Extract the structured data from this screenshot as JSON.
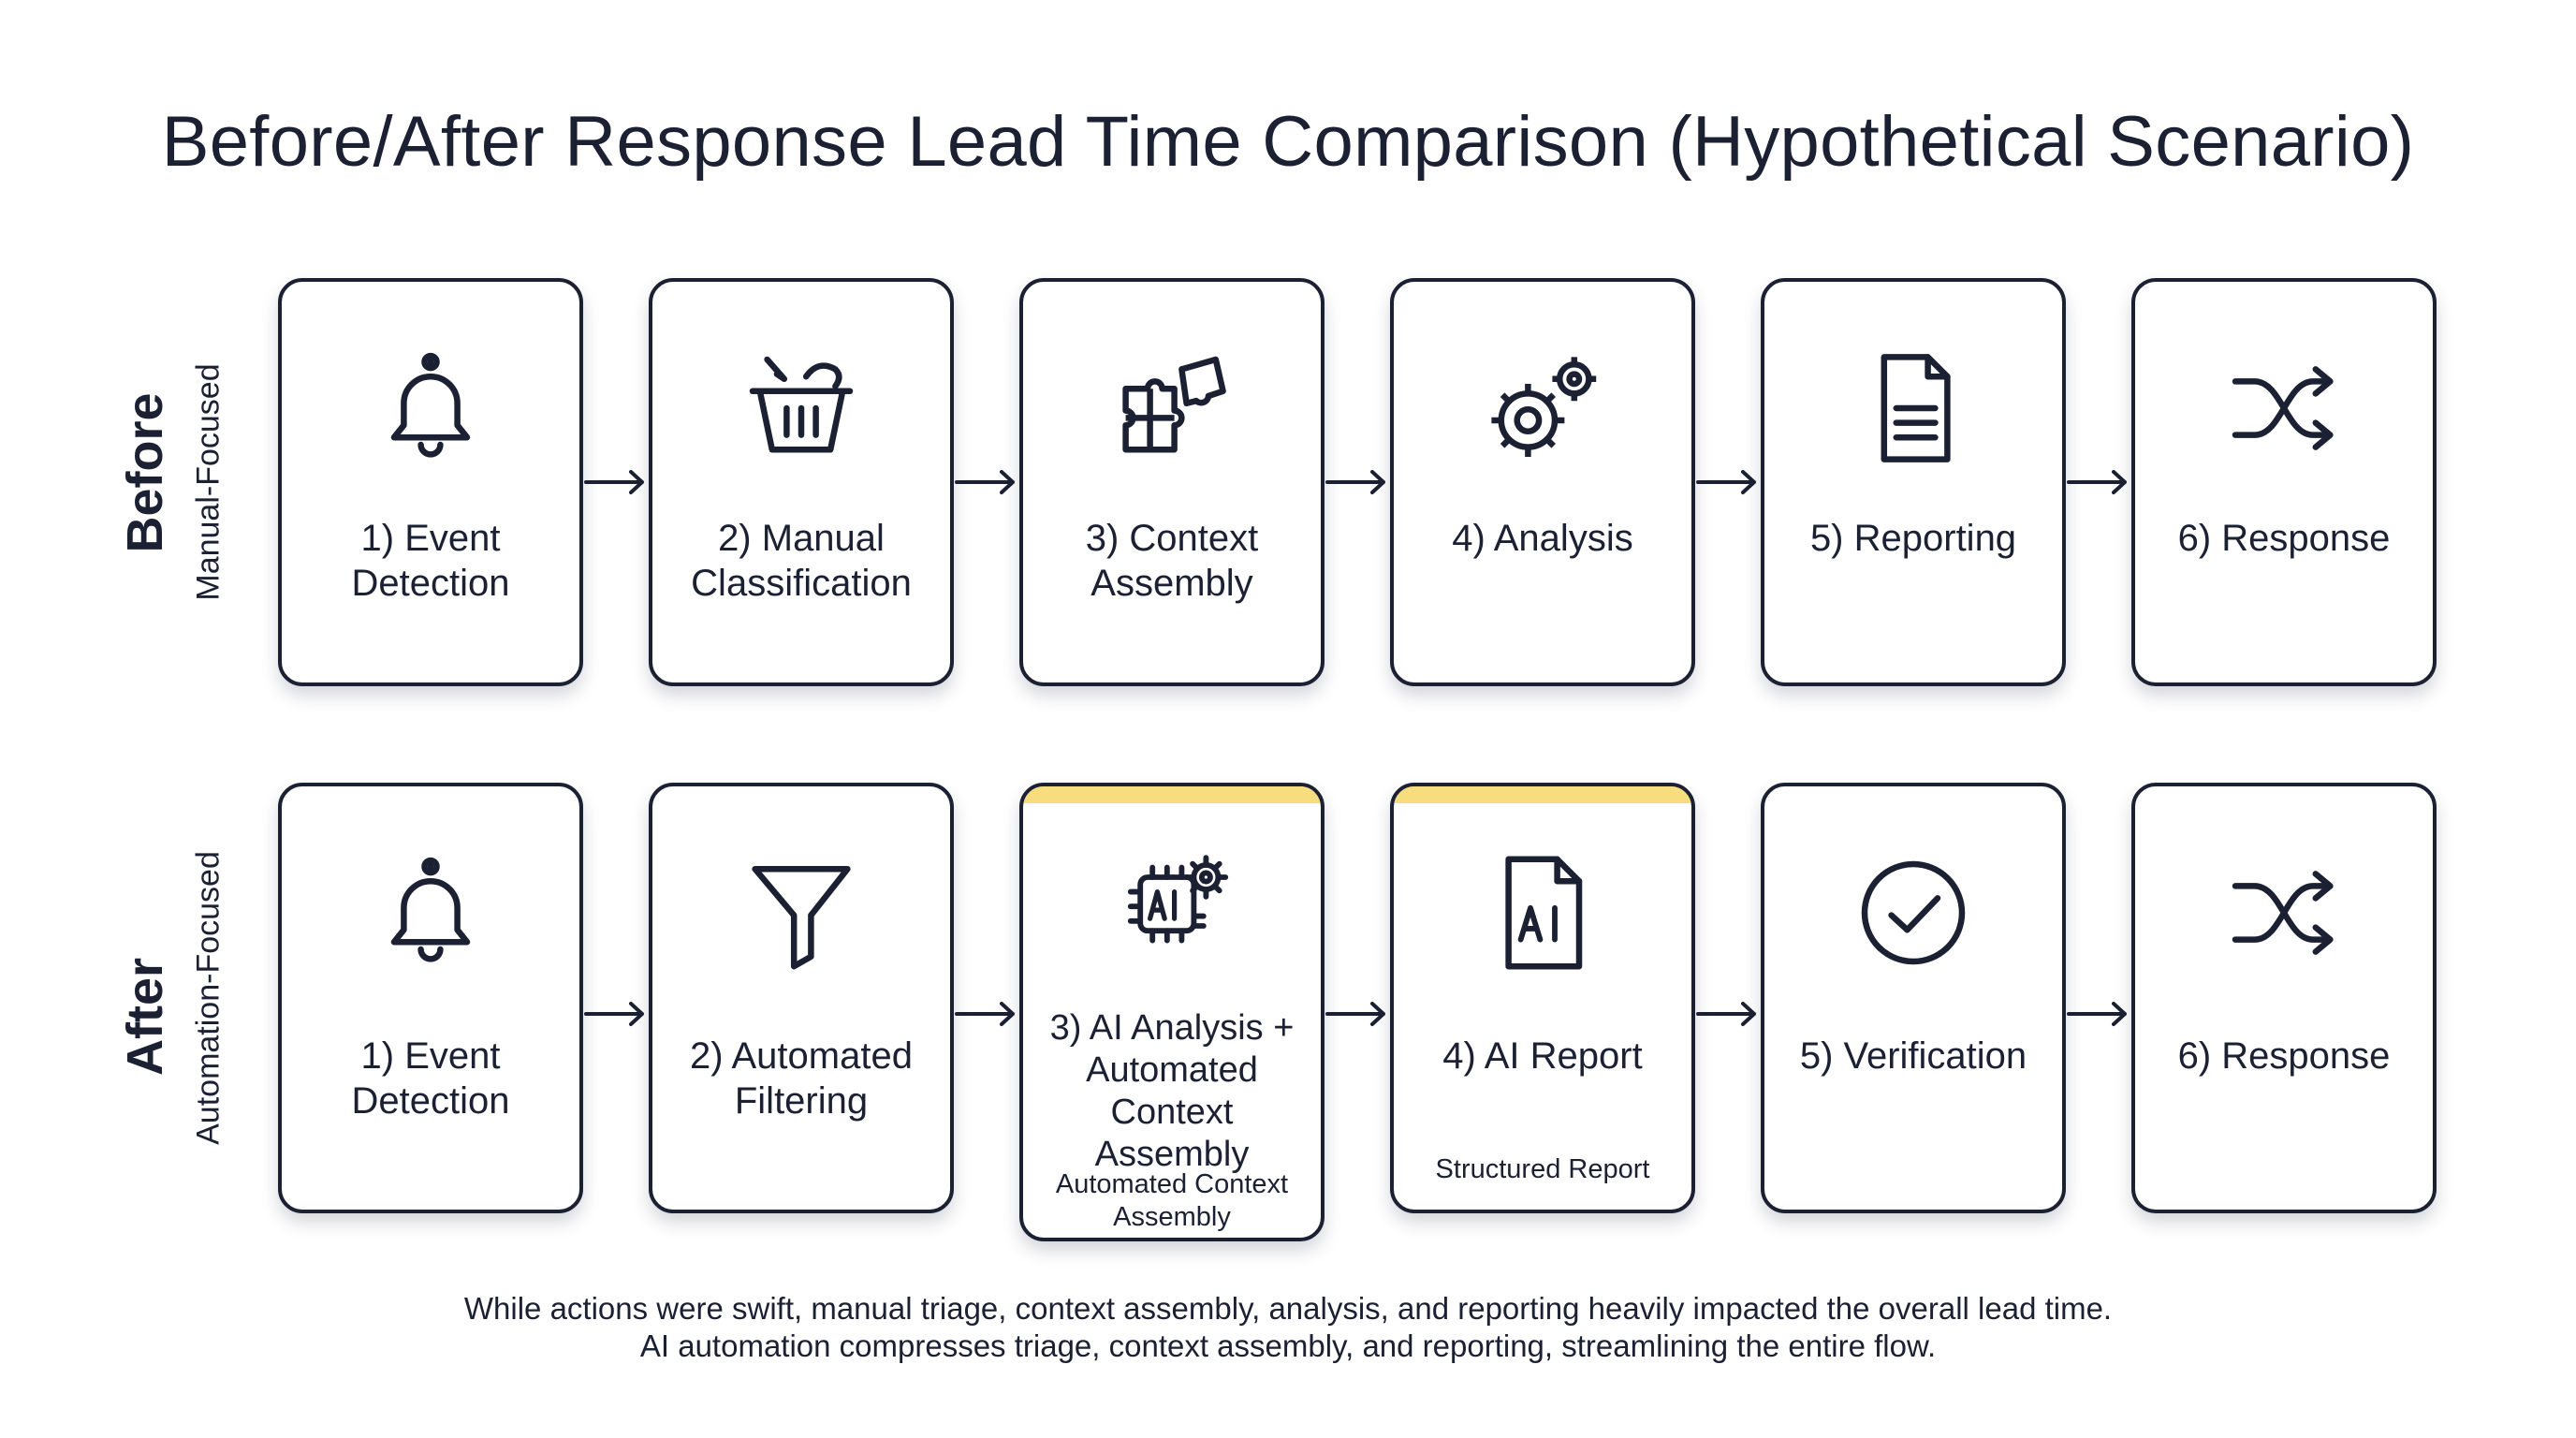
{
  "title": "Before/After Response Lead Time Comparison (Hypothetical Scenario)",
  "rows": {
    "before": {
      "label": "Before",
      "sublabel": "Manual-Focused",
      "steps": [
        {
          "label": "1) Event Detection",
          "icon": "bell-icon"
        },
        {
          "label": "2) Manual Classification",
          "icon": "basket-icon"
        },
        {
          "label": "3) Context Assembly",
          "icon": "puzzle-icon"
        },
        {
          "label": "4) Analysis",
          "icon": "gears-icon"
        },
        {
          "label": "5) Reporting",
          "icon": "document-icon"
        },
        {
          "label": "6) Response",
          "icon": "shuffle-icon"
        }
      ]
    },
    "after": {
      "label": "After",
      "sublabel": "Automation-Focused",
      "steps": [
        {
          "label": "1) Event Detection",
          "icon": "bell-icon"
        },
        {
          "label": "2) Automated Filtering",
          "icon": "filter-icon"
        },
        {
          "label": "3) AI Analysis + Automated Context Assembly",
          "sublabel": "Automated Context Assembly",
          "icon": "ai-chip-gear-icon",
          "highlight": true
        },
        {
          "label": "4) AI Report",
          "sublabel": "Structured Report",
          "icon": "ai-document-icon",
          "highlight": true
        },
        {
          "label": "5) Verification",
          "icon": "check-circle-icon"
        },
        {
          "label": "6) Response",
          "icon": "shuffle-icon"
        }
      ]
    }
  },
  "colors": {
    "ink": "#1c2033",
    "highlight": "#f7dd7e",
    "background": "#ffffff"
  },
  "captions": [
    "While actions were swift, manual triage, context assembly, analysis, and reporting heavily impacted the overall lead time.",
    "AI automation compresses triage, context assembly, and reporting, streamlining the entire flow."
  ]
}
